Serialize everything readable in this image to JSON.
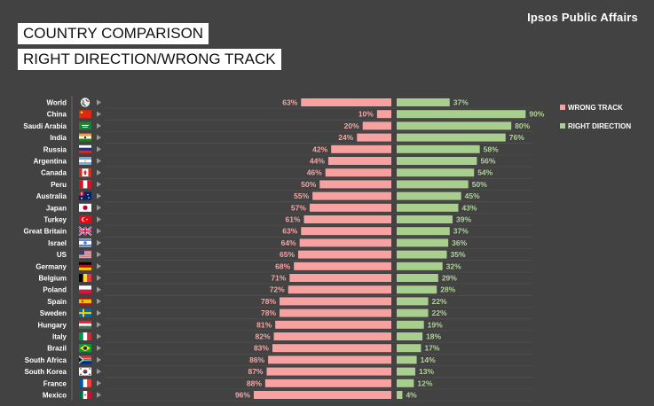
{
  "brand": "Ipsos Public Affairs",
  "title_line1": "COUNTRY COMPARISON",
  "title_line2": "RIGHT DIRECTION/WRONG TRACK",
  "colors": {
    "background": "#424242",
    "wrong_track": "#f7a1a1",
    "right_direction": "#a8cf8e"
  },
  "chart_data": {
    "type": "bar",
    "orientation": "horizontal-diverging",
    "legend_position": "right",
    "grid": false,
    "categories": [
      "World",
      "China",
      "Saudi Arabia",
      "India",
      "Russia",
      "Argentina",
      "Canada",
      "Peru",
      "Australia",
      "Japan",
      "Turkey",
      "Great Britain",
      "Israel",
      "US",
      "Germany",
      "Belgium",
      "Poland",
      "Spain",
      "Sweden",
      "Hungary",
      "Italy",
      "Brazil",
      "South Africa",
      "South Korea",
      "France",
      "Mexico"
    ],
    "series": [
      {
        "name": "WRONG TRACK",
        "values": [
          63,
          10,
          20,
          24,
          42,
          44,
          46,
          50,
          55,
          57,
          61,
          63,
          64,
          65,
          68,
          71,
          72,
          78,
          78,
          81,
          82,
          83,
          86,
          87,
          88,
          96
        ]
      },
      {
        "name": "RIGHT DIRECTION",
        "values": [
          37,
          90,
          80,
          76,
          58,
          56,
          54,
          50,
          45,
          43,
          39,
          37,
          36,
          35,
          32,
          29,
          28,
          22,
          22,
          19,
          18,
          17,
          14,
          13,
          12,
          4
        ]
      }
    ],
    "value_suffix": "%"
  },
  "flags": [
    "globe",
    "china",
    "saudi-arabia",
    "india",
    "russia",
    "argentina",
    "canada",
    "peru",
    "australia",
    "japan",
    "turkey",
    "great-britain",
    "israel",
    "us",
    "germany",
    "belgium",
    "poland",
    "spain",
    "sweden",
    "hungary",
    "italy",
    "brazil",
    "south-africa",
    "south-korea",
    "france",
    "mexico"
  ]
}
